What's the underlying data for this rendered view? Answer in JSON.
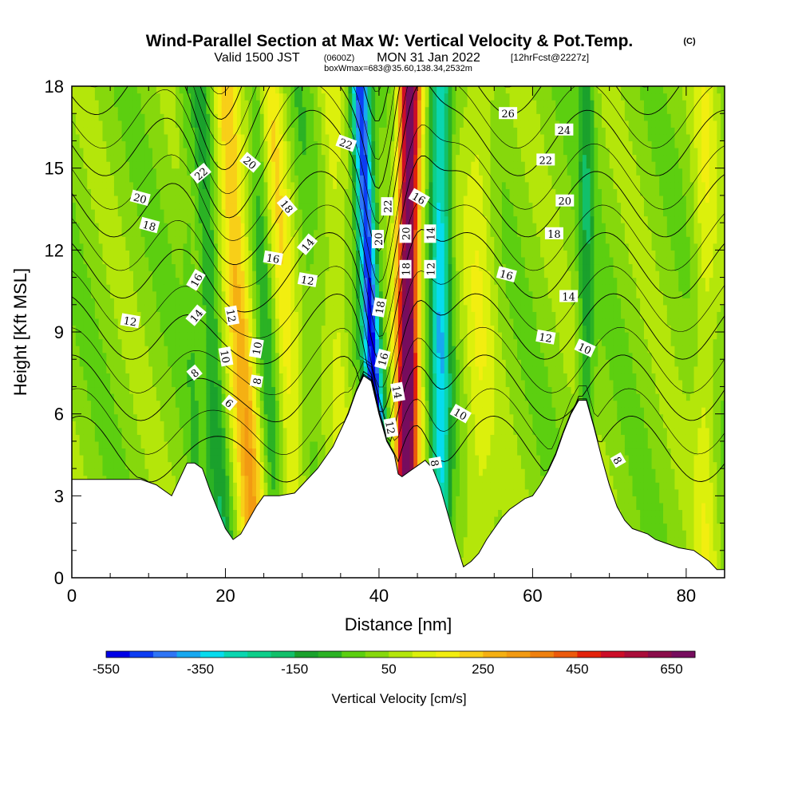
{
  "title": {
    "main": "Wind-Parallel Section at Max W: Vertical Velocity & Pot.Temp.",
    "main_suffix": "(C)",
    "valid_a": "Valid 1500 JST",
    "valid_b": "(0600Z)",
    "valid_c": "MON 31 Jan 2022",
    "valid_d": "[12hrFcst@2227z]",
    "box": "boxWmax=683@35.60,138.34,2532m"
  },
  "chart_data": {
    "type": "heatmap",
    "xlabel": "Distance [nm]",
    "ylabel": "Height [Kft MSL]",
    "xlim": [
      0,
      85
    ],
    "ylim": [
      0,
      18
    ],
    "x_ticks": [
      0,
      20,
      40,
      60,
      80
    ],
    "y_ticks": [
      0,
      3,
      6,
      9,
      12,
      15,
      18
    ],
    "grid": false,
    "colorbar": {
      "label": "Vertical Velocity [cm/s]",
      "tick_labels": [
        "-550",
        "-350",
        "-150",
        "50",
        "250",
        "450",
        "650"
      ],
      "tick_values": [
        -550,
        -350,
        -150,
        50,
        250,
        450,
        650
      ],
      "levels": [
        -550,
        -500,
        -450,
        -400,
        -350,
        -300,
        -250,
        -200,
        -150,
        -100,
        -50,
        0,
        50,
        100,
        150,
        200,
        250,
        300,
        350,
        400,
        450,
        500,
        550,
        600,
        650,
        700
      ],
      "colors": [
        "#0000e6",
        "#0d3df2",
        "#2f75f5",
        "#17a8f0",
        "#06dcee",
        "#0ad6b0",
        "#0dcf8a",
        "#12c06a",
        "#1aa12c",
        "#2bb224",
        "#5ccf10",
        "#86d80c",
        "#b4e60a",
        "#dcf00c",
        "#f2ee10",
        "#f8cf18",
        "#f5b013",
        "#f29a12",
        "#ef800e",
        "#ec5a0c",
        "#e3220a",
        "#cc0d28",
        "#aa0d3a",
        "#8a0c4a",
        "#760c5e"
      ]
    },
    "w_bands": [
      {
        "x0": 16.5,
        "w0": -50,
        "x18": 14.5,
        "halfwidth": 0.8
      },
      {
        "x0": 20.0,
        "w0": -150,
        "x18": 16.5,
        "halfwidth": 1.4
      },
      {
        "x0": 24.0,
        "w0": 250,
        "x18": 20.0,
        "halfwidth": 1.8
      },
      {
        "x0": 26.5,
        "w0": -100,
        "x18": 24.0,
        "halfwidth": 1.2
      },
      {
        "x0": 29.5,
        "w0": 150,
        "x18": 26.0,
        "halfwidth": 1.5
      },
      {
        "x0": 32.5,
        "w0": -50,
        "x18": 29.5,
        "halfwidth": 1.1
      },
      {
        "x0": 36.0,
        "w0": 100,
        "x18": 33.5,
        "halfwidth": 1.5
      },
      {
        "x0": 40.5,
        "w0": -550,
        "x18": 37.5,
        "halfwidth": 1.2
      },
      {
        "x0": 43.5,
        "w0": 700,
        "x18": 44.0,
        "halfwidth": 1.4
      },
      {
        "x0": 48.0,
        "w0": -350,
        "x18": 48.0,
        "halfwidth": 1.3
      },
      {
        "x0": 53.0,
        "w0": 100,
        "x18": 53.0,
        "halfwidth": 2.0
      },
      {
        "x0": 67.0,
        "w0": -150,
        "x18": 67.0,
        "halfwidth": 1.0
      },
      {
        "x0": 82.5,
        "w0": 100,
        "x18": 82.5,
        "halfwidth": 1.5
      }
    ],
    "terrain": [
      [
        0,
        3.6
      ],
      [
        3,
        3.6
      ],
      [
        6,
        3.6
      ],
      [
        9,
        3.6
      ],
      [
        11,
        3.4
      ],
      [
        12,
        3.2
      ],
      [
        13,
        3.0
      ],
      [
        14,
        3.6
      ],
      [
        15,
        4.2
      ],
      [
        16,
        4.2
      ],
      [
        17,
        4.0
      ],
      [
        18,
        3.2
      ],
      [
        19,
        2.5
      ],
      [
        20,
        1.8
      ],
      [
        21,
        1.4
      ],
      [
        22,
        1.6
      ],
      [
        23,
        2.1
      ],
      [
        24,
        2.6
      ],
      [
        25,
        3.0
      ],
      [
        27,
        3.0
      ],
      [
        29,
        3.1
      ],
      [
        30,
        3.4
      ],
      [
        31,
        3.7
      ],
      [
        32,
        4.0
      ],
      [
        33,
        4.4
      ],
      [
        34,
        4.8
      ],
      [
        35,
        5.4
      ],
      [
        36,
        6.0
      ],
      [
        37,
        6.8
      ],
      [
        38,
        7.4
      ],
      [
        39,
        7.2
      ],
      [
        40,
        6.0
      ],
      [
        41,
        5.0
      ],
      [
        42,
        4.5
      ],
      [
        42.5,
        3.8
      ],
      [
        43,
        3.7
      ],
      [
        44,
        3.9
      ],
      [
        45,
        4.1
      ],
      [
        46,
        4.3
      ],
      [
        47,
        4.0
      ],
      [
        48,
        3.3
      ],
      [
        49,
        2.3
      ],
      [
        50,
        1.3
      ],
      [
        51,
        0.4
      ],
      [
        52,
        0.6
      ],
      [
        53,
        0.9
      ],
      [
        54,
        1.4
      ],
      [
        55,
        1.8
      ],
      [
        56,
        2.2
      ],
      [
        57,
        2.5
      ],
      [
        58,
        2.7
      ],
      [
        59,
        2.9
      ],
      [
        60,
        3.0
      ],
      [
        61,
        3.4
      ],
      [
        62,
        3.9
      ],
      [
        63,
        4.5
      ],
      [
        64,
        5.3
      ],
      [
        65,
        6.0
      ],
      [
        66,
        6.5
      ],
      [
        67,
        6.5
      ],
      [
        68,
        5.5
      ],
      [
        69,
        4.4
      ],
      [
        70,
        3.4
      ],
      [
        71,
        2.6
      ],
      [
        72,
        2.1
      ],
      [
        73,
        1.8
      ],
      [
        75,
        1.6
      ],
      [
        76,
        1.4
      ],
      [
        77,
        1.3
      ],
      [
        79,
        1.1
      ],
      [
        81,
        1.0
      ],
      [
        82,
        0.8
      ],
      [
        83,
        0.6
      ],
      [
        84,
        0.3
      ],
      [
        85,
        0.3
      ]
    ],
    "theta_contour_levels": [
      6,
      8,
      10,
      12,
      14,
      16,
      18,
      20,
      22,
      24,
      26
    ],
    "contour_labels": [
      {
        "text": "22",
        "x": 16.8,
        "y": 14.8,
        "rot": 40
      },
      {
        "text": "20",
        "x": 23.2,
        "y": 15.2,
        "rot": -40
      },
      {
        "text": "22",
        "x": 35.7,
        "y": 15.9,
        "rot": -20
      },
      {
        "text": "26",
        "x": 56.8,
        "y": 17.0,
        "rot": 0
      },
      {
        "text": "24",
        "x": 64.1,
        "y": 16.4,
        "rot": 0
      },
      {
        "text": "22",
        "x": 61.7,
        "y": 15.3,
        "rot": 0
      },
      {
        "text": "20",
        "x": 8.9,
        "y": 13.9,
        "rot": -15
      },
      {
        "text": "18",
        "x": 10.1,
        "y": 12.9,
        "rot": -15
      },
      {
        "text": "18",
        "x": 28.0,
        "y": 13.6,
        "rot": -50
      },
      {
        "text": "22",
        "x": 41.1,
        "y": 13.6,
        "rot": 90
      },
      {
        "text": "16",
        "x": 45.2,
        "y": 13.9,
        "rot": -30
      },
      {
        "text": "20",
        "x": 64.2,
        "y": 13.8,
        "rot": 0
      },
      {
        "text": "20",
        "x": 39.9,
        "y": 12.4,
        "rot": 90
      },
      {
        "text": "20",
        "x": 43.5,
        "y": 12.6,
        "rot": 90
      },
      {
        "text": "14",
        "x": 46.7,
        "y": 12.6,
        "rot": 90
      },
      {
        "text": "14",
        "x": 30.7,
        "y": 12.2,
        "rot": 50
      },
      {
        "text": "18",
        "x": 62.8,
        "y": 12.6,
        "rot": 0
      },
      {
        "text": "16",
        "x": 26.2,
        "y": 11.7,
        "rot": -10
      },
      {
        "text": "18",
        "x": 43.5,
        "y": 11.3,
        "rot": 90
      },
      {
        "text": "12",
        "x": 46.7,
        "y": 11.3,
        "rot": 90
      },
      {
        "text": "16",
        "x": 16.2,
        "y": 10.9,
        "rot": 60
      },
      {
        "text": "12",
        "x": 30.7,
        "y": 10.9,
        "rot": -10
      },
      {
        "text": "16",
        "x": 56.6,
        "y": 11.1,
        "rot": -15
      },
      {
        "text": "14",
        "x": 16.2,
        "y": 9.6,
        "rot": 50
      },
      {
        "text": "12",
        "x": 20.8,
        "y": 9.6,
        "rot": -80
      },
      {
        "text": "12",
        "x": 7.6,
        "y": 9.4,
        "rot": -10
      },
      {
        "text": "18",
        "x": 40.1,
        "y": 9.9,
        "rot": 80
      },
      {
        "text": "14",
        "x": 64.7,
        "y": 10.3,
        "rot": 0
      },
      {
        "text": "12",
        "x": 61.7,
        "y": 8.8,
        "rot": -10
      },
      {
        "text": "10",
        "x": 24.1,
        "y": 8.4,
        "rot": 80
      },
      {
        "text": "10",
        "x": 20.0,
        "y": 8.1,
        "rot": -80
      },
      {
        "text": "10",
        "x": 66.8,
        "y": 8.4,
        "rot": -25
      },
      {
        "text": "16",
        "x": 40.5,
        "y": 8.0,
        "rot": 75
      },
      {
        "text": "8",
        "x": 16.0,
        "y": 7.5,
        "rot": 40
      },
      {
        "text": "8",
        "x": 24.1,
        "y": 7.2,
        "rot": 80
      },
      {
        "text": "14",
        "x": 42.4,
        "y": 6.8,
        "rot": -80
      },
      {
        "text": "6",
        "x": 20.5,
        "y": 6.4,
        "rot": -40
      },
      {
        "text": "10",
        "x": 50.6,
        "y": 6.0,
        "rot": -30
      },
      {
        "text": "12",
        "x": 41.5,
        "y": 5.5,
        "rot": -80
      },
      {
        "text": "8",
        "x": 47.3,
        "y": 4.2,
        "rot": -80
      },
      {
        "text": "8",
        "x": 71.1,
        "y": 4.3,
        "rot": -60
      }
    ]
  }
}
